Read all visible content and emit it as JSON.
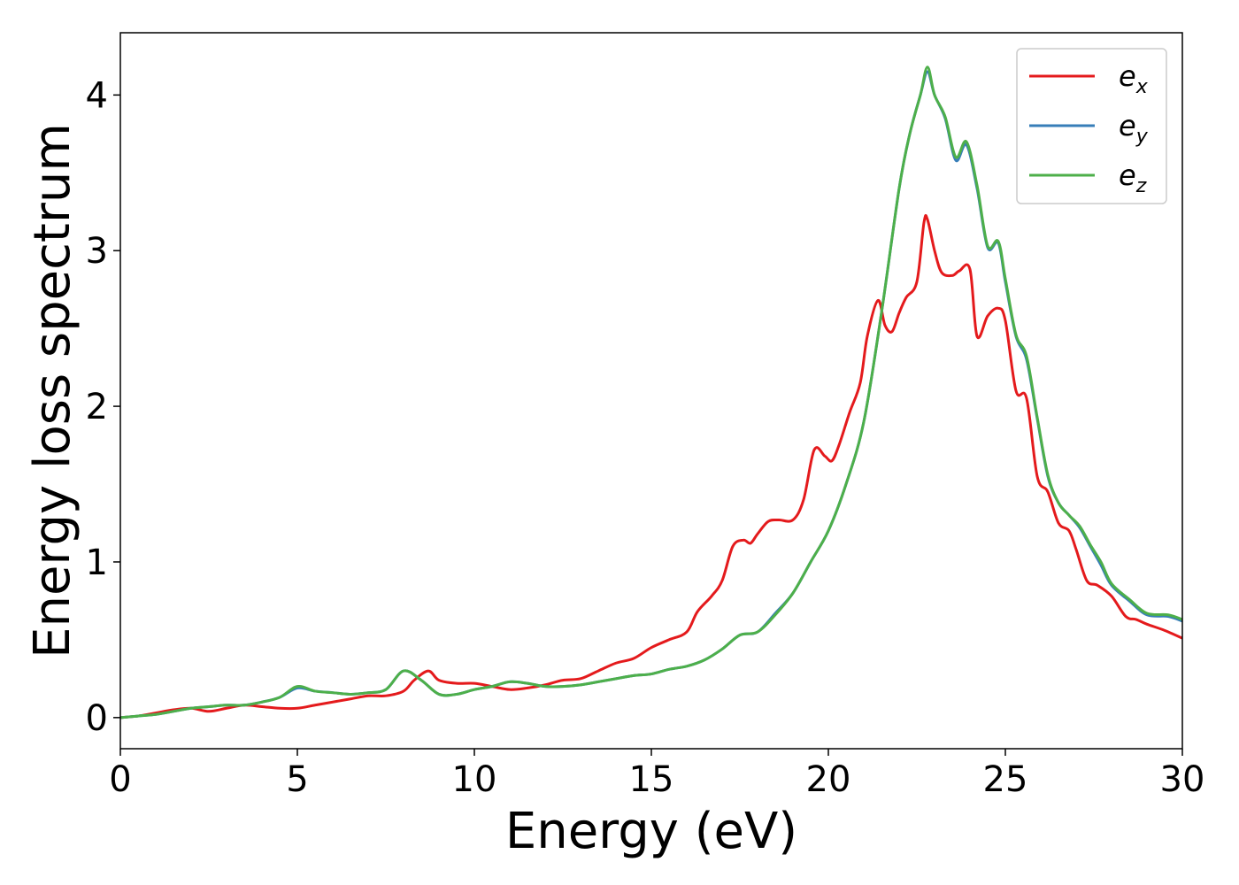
{
  "chart_data": {
    "type": "line",
    "title": "",
    "xlabel": "Energy (eV)",
    "ylabel": "Energy loss spectrum",
    "xlim": [
      0,
      30
    ],
    "ylim": [
      -0.2,
      4.4
    ],
    "xticks": [
      0,
      5,
      10,
      15,
      20,
      25,
      30
    ],
    "yticks": [
      0,
      1,
      2,
      3,
      4
    ],
    "grid": false,
    "legend_position": "top-right",
    "series": [
      {
        "name": "e",
        "subscript": "x",
        "color": "#e41a1c",
        "x": [
          0,
          0.5,
          1,
          1.5,
          2,
          2.5,
          3,
          3.5,
          4,
          4.5,
          5,
          5.5,
          6,
          6.5,
          7,
          7.5,
          8,
          8.3,
          8.7,
          9,
          9.5,
          10,
          10.5,
          11,
          11.5,
          12,
          12.5,
          13,
          13.5,
          14,
          14.5,
          15,
          15.5,
          16,
          16.3,
          16.7,
          17,
          17.3,
          17.6,
          17.8,
          18,
          18.3,
          18.6,
          19,
          19.3,
          19.6,
          19.9,
          20.1,
          20.3,
          20.6,
          20.9,
          21.1,
          21.4,
          21.6,
          21.8,
          22,
          22.2,
          22.5,
          22.7,
          22.8,
          23,
          23.2,
          23.5,
          23.7,
          24,
          24.2,
          24.5,
          24.8,
          25,
          25.3,
          25.6,
          25.9,
          26.2,
          26.5,
          26.8,
          27,
          27.3,
          27.6,
          28,
          28.4,
          28.7,
          29,
          29.5,
          30
        ],
        "y": [
          0,
          0.01,
          0.03,
          0.05,
          0.06,
          0.04,
          0.06,
          0.08,
          0.07,
          0.06,
          0.06,
          0.08,
          0.1,
          0.12,
          0.14,
          0.14,
          0.17,
          0.24,
          0.3,
          0.24,
          0.22,
          0.22,
          0.2,
          0.18,
          0.19,
          0.21,
          0.24,
          0.25,
          0.3,
          0.35,
          0.38,
          0.45,
          0.5,
          0.55,
          0.68,
          0.78,
          0.88,
          1.1,
          1.14,
          1.12,
          1.18,
          1.26,
          1.27,
          1.27,
          1.4,
          1.72,
          1.68,
          1.65,
          1.75,
          1.96,
          2.15,
          2.45,
          2.68,
          2.52,
          2.48,
          2.6,
          2.7,
          2.8,
          3.18,
          3.2,
          3.0,
          2.86,
          2.84,
          2.87,
          2.88,
          2.45,
          2.58,
          2.63,
          2.55,
          2.1,
          2.05,
          1.55,
          1.45,
          1.25,
          1.2,
          1.08,
          0.88,
          0.85,
          0.78,
          0.65,
          0.63,
          0.6,
          0.56,
          0.51
        ]
      },
      {
        "name": "e",
        "subscript": "y",
        "color": "#377eb8",
        "x": [
          0,
          0.5,
          1,
          1.5,
          2,
          2.5,
          3,
          3.5,
          4,
          4.5,
          5,
          5.5,
          6,
          6.5,
          7,
          7.5,
          8,
          8.5,
          9,
          9.5,
          10,
          10.5,
          11,
          11.5,
          12,
          12.5,
          13,
          13.5,
          14,
          14.5,
          15,
          15.5,
          16,
          16.5,
          17,
          17.5,
          18,
          18.5,
          19,
          19.5,
          20,
          20.5,
          21,
          21.5,
          22,
          22.3,
          22.6,
          22.8,
          23,
          23.3,
          23.6,
          23.9,
          24.2,
          24.5,
          24.8,
          25,
          25.3,
          25.6,
          25.9,
          26.2,
          26.5,
          26.8,
          27.1,
          27.4,
          27.7,
          28,
          28.5,
          29,
          29.6,
          30
        ],
        "y": [
          0,
          0.01,
          0.02,
          0.04,
          0.06,
          0.07,
          0.08,
          0.08,
          0.1,
          0.13,
          0.19,
          0.17,
          0.16,
          0.15,
          0.16,
          0.18,
          0.3,
          0.24,
          0.15,
          0.15,
          0.18,
          0.2,
          0.23,
          0.22,
          0.2,
          0.2,
          0.21,
          0.23,
          0.25,
          0.27,
          0.28,
          0.31,
          0.33,
          0.37,
          0.44,
          0.53,
          0.55,
          0.67,
          0.8,
          1.0,
          1.2,
          1.5,
          1.9,
          2.6,
          3.4,
          3.75,
          4.0,
          4.15,
          4.0,
          3.85,
          3.58,
          3.68,
          3.4,
          3.02,
          3.05,
          2.8,
          2.45,
          2.3,
          1.92,
          1.55,
          1.38,
          1.3,
          1.22,
          1.1,
          0.98,
          0.85,
          0.75,
          0.66,
          0.65,
          0.62
        ]
      },
      {
        "name": "e",
        "subscript": "z",
        "color": "#4daf4a",
        "x": [
          0,
          0.5,
          1,
          1.5,
          2,
          2.5,
          3,
          3.5,
          4,
          4.5,
          5,
          5.5,
          6,
          6.5,
          7,
          7.5,
          8,
          8.5,
          9,
          9.5,
          10,
          10.5,
          11,
          11.5,
          12,
          12.5,
          13,
          13.5,
          14,
          14.5,
          15,
          15.5,
          16,
          16.5,
          17,
          17.5,
          18,
          18.5,
          19,
          19.5,
          20,
          20.5,
          21,
          21.5,
          22,
          22.3,
          22.6,
          22.8,
          23,
          23.3,
          23.6,
          23.9,
          24.2,
          24.5,
          24.8,
          25,
          25.3,
          25.6,
          25.9,
          26.2,
          26.5,
          26.8,
          27.1,
          27.4,
          27.7,
          28,
          28.5,
          29,
          29.6,
          30
        ],
        "y": [
          0,
          0.01,
          0.02,
          0.04,
          0.06,
          0.07,
          0.08,
          0.08,
          0.1,
          0.13,
          0.2,
          0.17,
          0.16,
          0.15,
          0.16,
          0.18,
          0.3,
          0.24,
          0.15,
          0.15,
          0.18,
          0.2,
          0.23,
          0.22,
          0.2,
          0.2,
          0.21,
          0.23,
          0.25,
          0.27,
          0.28,
          0.31,
          0.33,
          0.37,
          0.44,
          0.53,
          0.55,
          0.66,
          0.8,
          1.0,
          1.2,
          1.5,
          1.9,
          2.6,
          3.4,
          3.75,
          4.0,
          4.18,
          4.0,
          3.86,
          3.6,
          3.7,
          3.42,
          3.03,
          3.06,
          2.82,
          2.46,
          2.32,
          1.93,
          1.56,
          1.38,
          1.3,
          1.23,
          1.11,
          1.0,
          0.86,
          0.76,
          0.67,
          0.66,
          0.63
        ]
      }
    ]
  }
}
